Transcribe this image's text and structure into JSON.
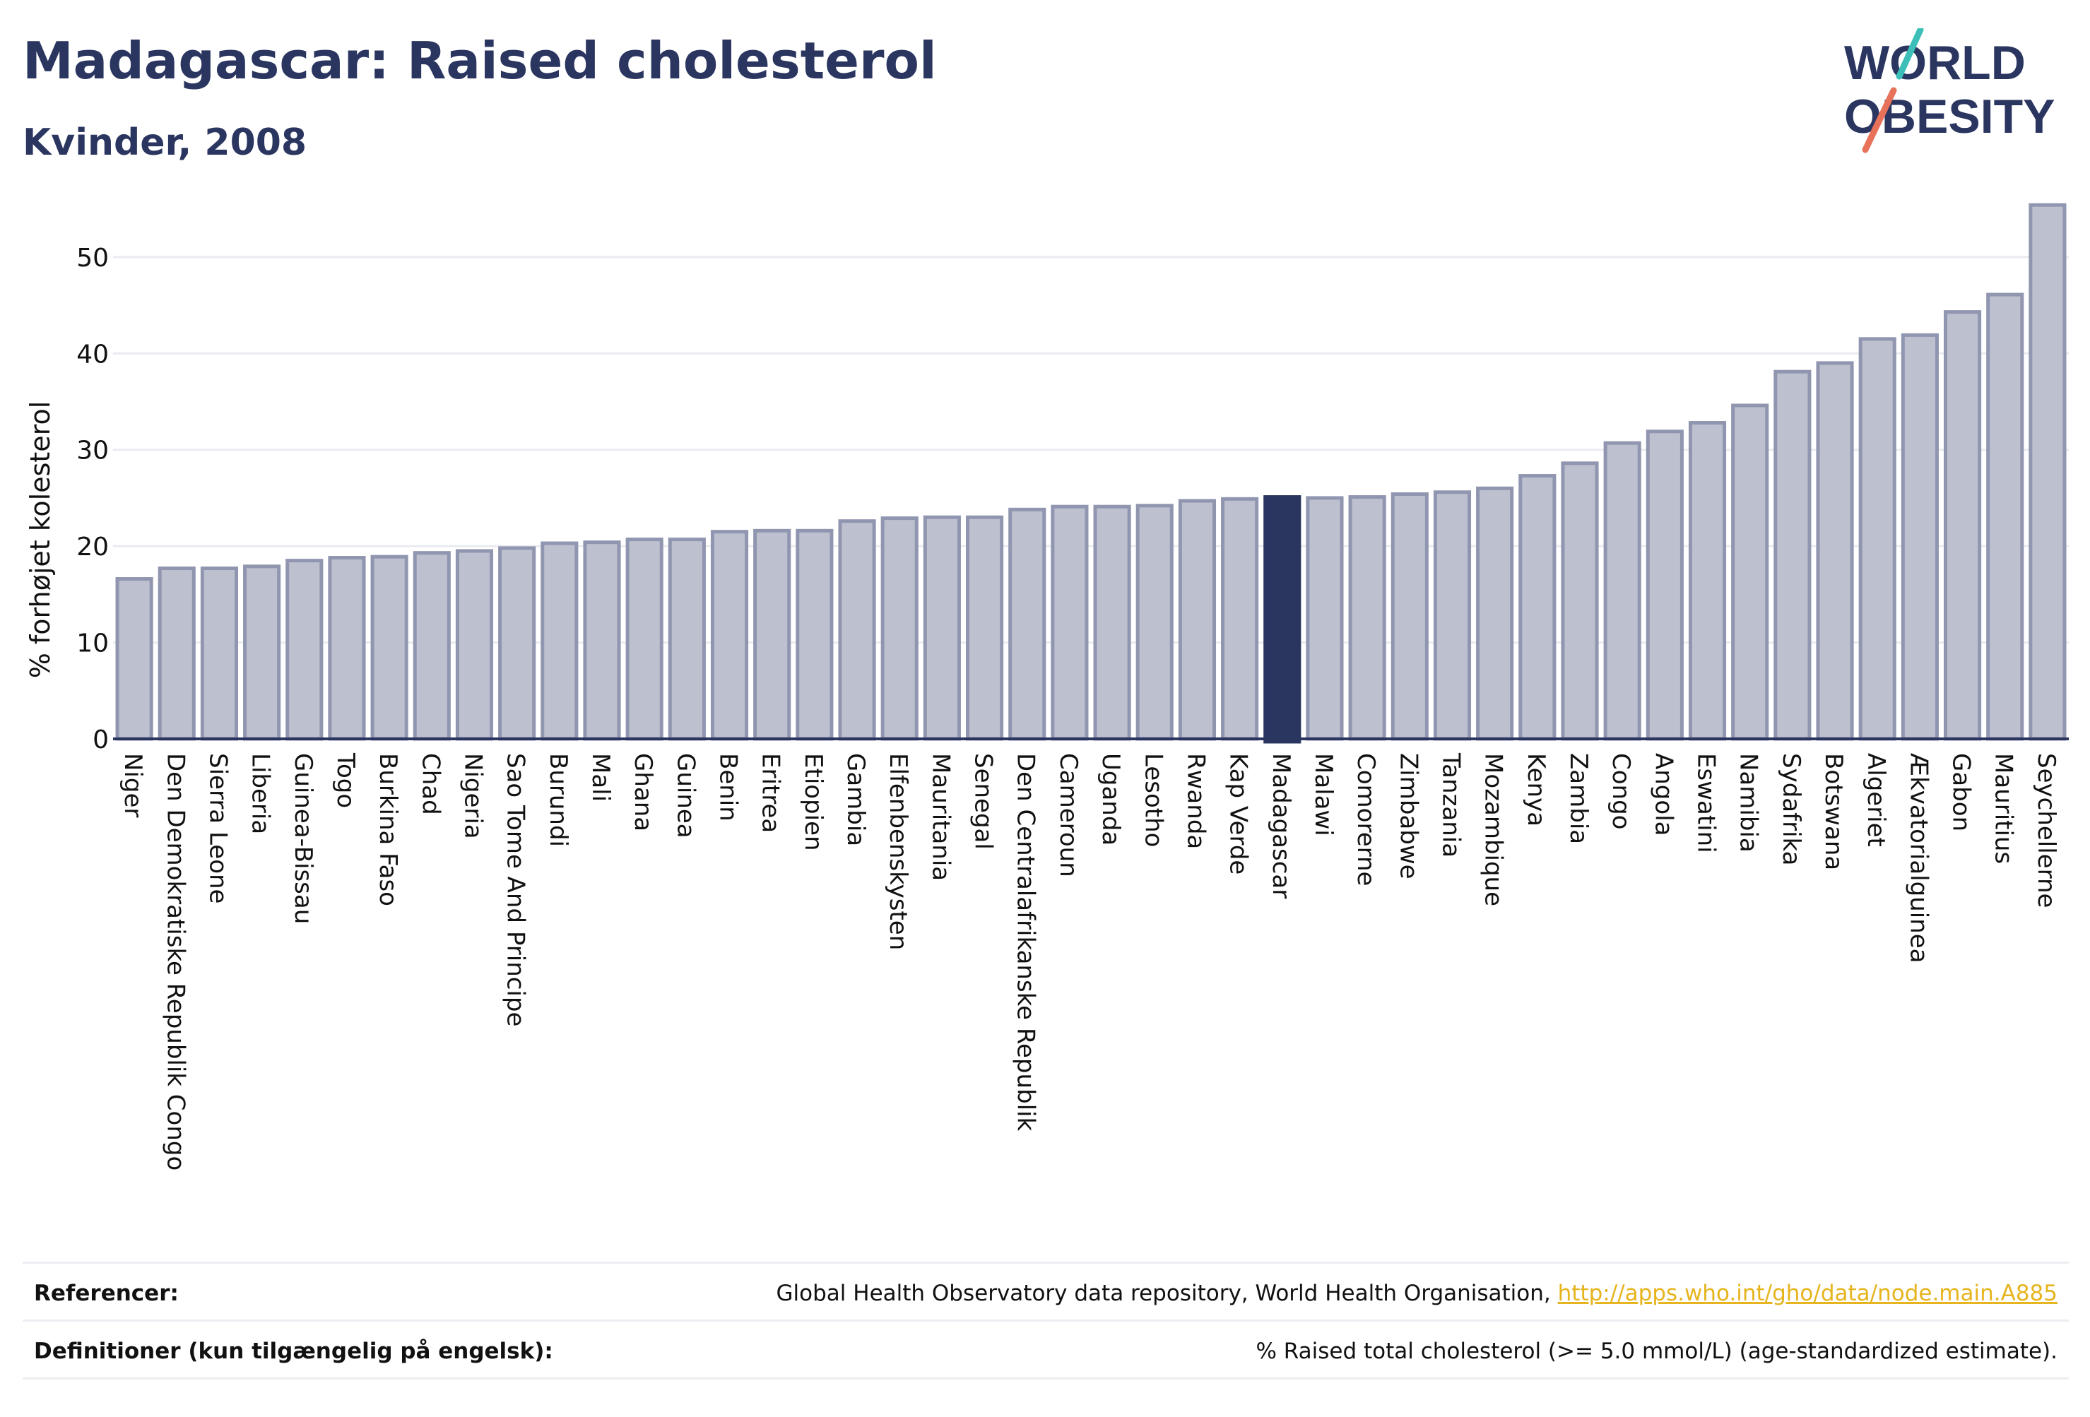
{
  "header": {
    "title": "Madagascar: Raised cholesterol",
    "subtitle": "Kvinder, 2008"
  },
  "logo": {
    "line1": "WORLD",
    "line2": "OBESITY"
  },
  "colors": {
    "primary": "#2a3560",
    "bar_fill": "#bcc0cf",
    "bar_stroke": "#9196b0",
    "highlight": "#2a3560",
    "accent_teal": "#3bbfb8",
    "accent_coral": "#e8715a",
    "link": "#e6b41e"
  },
  "chart_data": {
    "type": "bar",
    "ylabel": "% forhøjet kolesterol",
    "ylim": [
      0,
      56
    ],
    "yticks": [
      0,
      10,
      20,
      30,
      40,
      50
    ],
    "grid": true,
    "highlight": "Madagascar",
    "categories": [
      "Niger",
      "Den Demokratiske Republik Congo",
      "Sierra Leone",
      "Liberia",
      "Guinea-Bissau",
      "Togo",
      "Burkina Faso",
      "Chad",
      "Nigeria",
      "Sao Tome And Principe",
      "Burundi",
      "Mali",
      "Ghana",
      "Guinea",
      "Benin",
      "Eritrea",
      "Etiopien",
      "Gambia",
      "Elfenbenskysten",
      "Mauritania",
      "Senegal",
      "Den Centralafrikanske Republik",
      "Cameroun",
      "Uganda",
      "Lesotho",
      "Rwanda",
      "Kap Verde",
      "Madagascar",
      "Malawi",
      "Comorerne",
      "Zimbabwe",
      "Tanzania",
      "Mozambique",
      "Kenya",
      "Zambia",
      "Congo",
      "Angola",
      "Eswatini",
      "Namibia",
      "Sydafrika",
      "Botswana",
      "Algeriet",
      "Ækvatorialguinea",
      "Gabon",
      "Mauritius",
      "Seychellerne"
    ],
    "values": [
      16.6,
      17.7,
      17.7,
      17.9,
      18.5,
      18.8,
      18.9,
      19.3,
      19.5,
      19.8,
      20.3,
      20.4,
      20.7,
      20.7,
      21.5,
      21.6,
      21.6,
      22.6,
      22.9,
      23.0,
      23.0,
      23.8,
      24.1,
      24.1,
      24.2,
      24.7,
      24.9,
      25.1,
      25.0,
      25.1,
      25.4,
      25.6,
      26.0,
      27.3,
      28.6,
      30.7,
      31.9,
      32.8,
      34.6,
      38.1,
      39.0,
      41.5,
      41.9,
      44.3,
      46.1,
      55.4
    ]
  },
  "footer": {
    "references_label": "Referencer:",
    "references_text": "Global Health Observatory data repository, World Health Organisation, ",
    "references_link": "http://apps.who.int/gho/data/node.main.A885",
    "definitions_label": "Definitioner (kun tilgængelig på engelsk):",
    "definitions_text": "% Raised total cholesterol (>= 5.0 mmol/L) (age-standardized estimate)."
  }
}
